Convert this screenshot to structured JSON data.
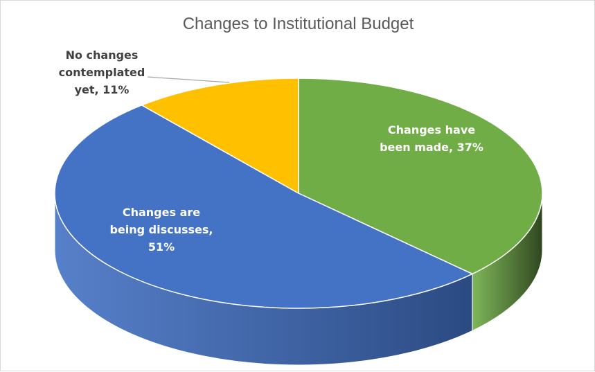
{
  "chart_data": {
    "type": "pie",
    "variant": "3d",
    "title": "Changes to Institutional Budget",
    "slices": [
      {
        "label": "Changes have been made",
        "value": 37,
        "value_text": "37%",
        "color": "#70ad47",
        "side_color": "#2f461f",
        "label_color": "#ffffff",
        "label_lines": [
          "Changes have",
          "been made, 37%"
        ]
      },
      {
        "label": "Changes are being discusses",
        "value": 51,
        "value_text": "51%",
        "color": "#4472c4",
        "side_color": "#2b4a82",
        "label_color": "#ffffff",
        "label_lines": [
          "Changes are",
          "being discusses,",
          "51%"
        ]
      },
      {
        "label": "No changes contemplated yet",
        "value": 11,
        "value_text": "11%",
        "color": "#ffc000",
        "side_color": "#a07800",
        "label_color": "#404040",
        "label_lines": [
          "No changes",
          "contemplated",
          "yet, 11%"
        ]
      }
    ],
    "legend": "none",
    "data_labels": true
  }
}
